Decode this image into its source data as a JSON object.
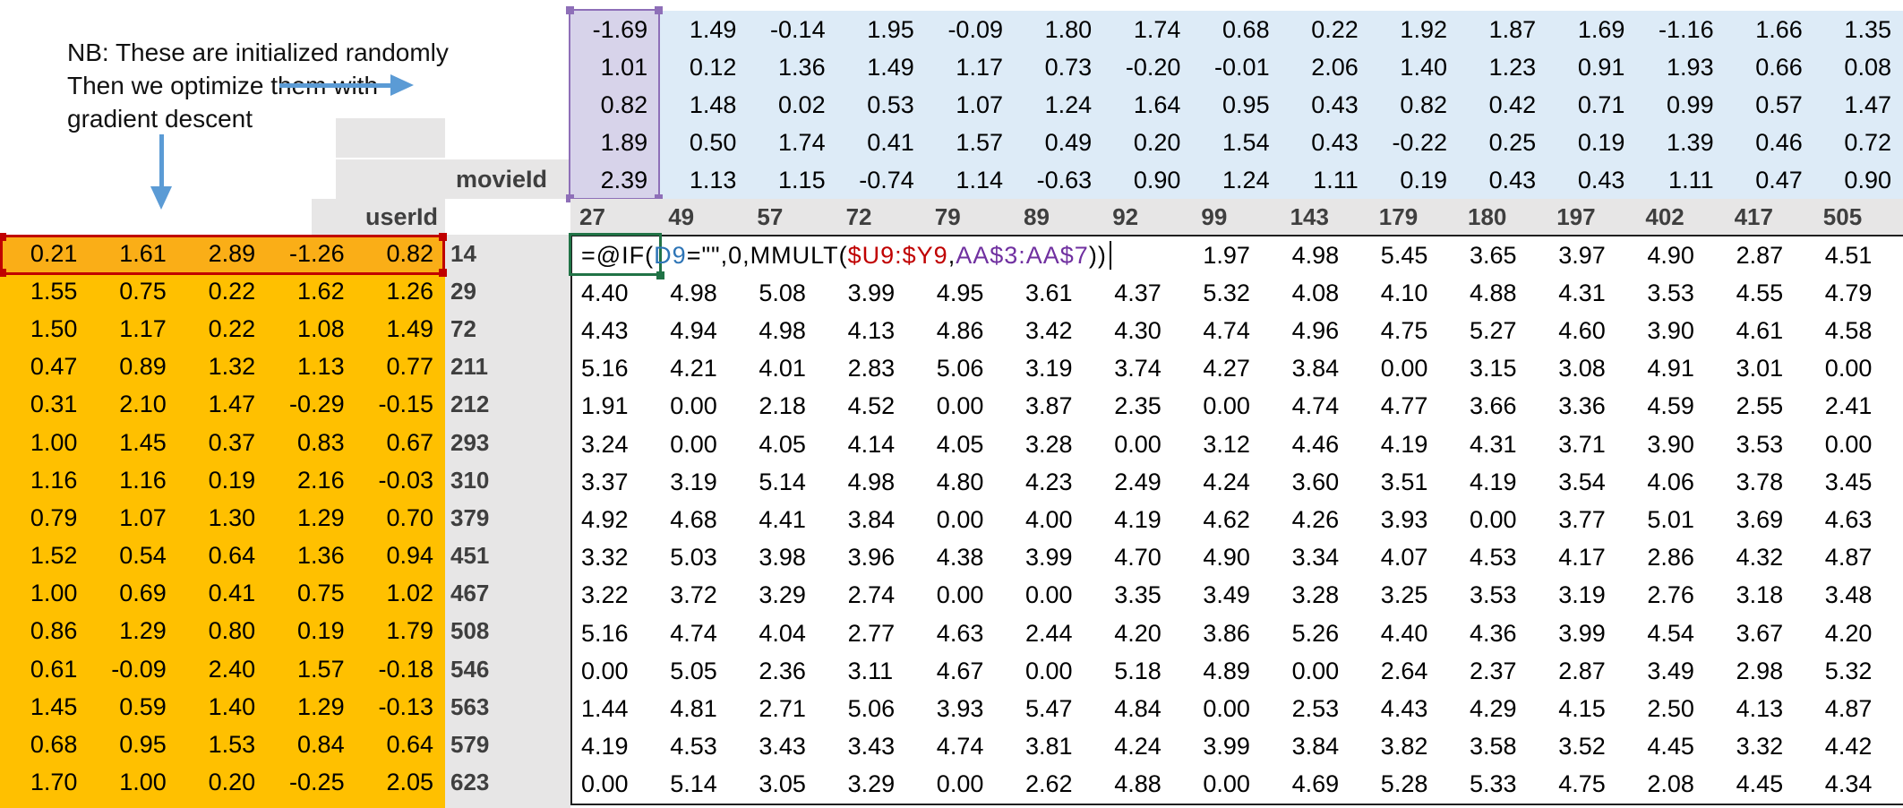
{
  "annotation": {
    "lines": [
      "NB: These are initialized randomly",
      "Then we optimize them with",
      "gradient descent"
    ]
  },
  "labels": {
    "movie_id": "movieId",
    "user_id": "userId"
  },
  "movie_ids": [
    "27",
    "49",
    "57",
    "72",
    "79",
    "89",
    "92",
    "99",
    "143",
    "179",
    "180",
    "197",
    "402",
    "417",
    "505"
  ],
  "user_ids": [
    "14",
    "29",
    "72",
    "211",
    "212",
    "293",
    "310",
    "379",
    "451",
    "467",
    "508",
    "546",
    "563",
    "579",
    "623"
  ],
  "movie_factors": {
    "rows": [
      [
        "-1.69",
        "1.49",
        "-0.14",
        "1.95",
        "-0.09",
        "1.80",
        "1.74",
        "0.68",
        "0.22",
        "1.92",
        "1.87",
        "1.69",
        "-1.16",
        "1.66",
        "1.35"
      ],
      [
        "1.01",
        "0.12",
        "1.36",
        "1.49",
        "1.17",
        "0.73",
        "-0.20",
        "-0.01",
        "2.06",
        "1.40",
        "1.23",
        "0.91",
        "1.93",
        "0.66",
        "0.08"
      ],
      [
        "0.82",
        "1.48",
        "0.02",
        "0.53",
        "1.07",
        "1.24",
        "1.64",
        "0.95",
        "0.43",
        "0.82",
        "0.42",
        "0.71",
        "0.99",
        "0.57",
        "1.47"
      ],
      [
        "1.89",
        "0.50",
        "1.74",
        "0.41",
        "1.57",
        "0.49",
        "0.20",
        "1.54",
        "0.43",
        "-0.22",
        "0.25",
        "0.19",
        "1.39",
        "0.46",
        "0.72"
      ],
      [
        "2.39",
        "1.13",
        "1.15",
        "-0.74",
        "1.14",
        "-0.63",
        "0.90",
        "1.24",
        "1.11",
        "0.19",
        "0.43",
        "0.43",
        "1.11",
        "0.47",
        "0.90"
      ]
    ]
  },
  "user_factors": {
    "rows": [
      [
        "0.21",
        "1.61",
        "2.89",
        "-1.26",
        "0.82"
      ],
      [
        "1.55",
        "0.75",
        "0.22",
        "1.62",
        "1.26"
      ],
      [
        "1.50",
        "1.17",
        "0.22",
        "1.08",
        "1.49"
      ],
      [
        "0.47",
        "0.89",
        "1.32",
        "1.13",
        "0.77"
      ],
      [
        "0.31",
        "2.10",
        "1.47",
        "-0.29",
        "-0.15"
      ],
      [
        "1.00",
        "1.45",
        "0.37",
        "0.83",
        "0.67"
      ],
      [
        "1.16",
        "1.16",
        "0.19",
        "2.16",
        "-0.03"
      ],
      [
        "0.79",
        "1.07",
        "1.30",
        "1.29",
        "0.70"
      ],
      [
        "1.52",
        "0.54",
        "0.64",
        "1.36",
        "0.94"
      ],
      [
        "1.00",
        "0.69",
        "0.41",
        "0.75",
        "1.02"
      ],
      [
        "0.86",
        "1.29",
        "0.80",
        "0.19",
        "1.79"
      ],
      [
        "0.61",
        "-0.09",
        "2.40",
        "1.57",
        "-0.18"
      ],
      [
        "1.45",
        "0.59",
        "1.40",
        "1.29",
        "-0.13"
      ],
      [
        "0.68",
        "0.95",
        "1.53",
        "0.84",
        "0.64"
      ],
      [
        "1.70",
        "1.00",
        "0.20",
        "-0.25",
        "2.05"
      ]
    ]
  },
  "formula": {
    "segments": [
      {
        "text": "=@IF(",
        "color": "#000000"
      },
      {
        "text": "D9",
        "color": "#2E75B6"
      },
      {
        "text": "=\"\",0,MMULT(",
        "color": "#000000"
      },
      {
        "text": "$U9:$Y9",
        "color": "#C00000"
      },
      {
        "text": ",",
        "color": "#000000"
      },
      {
        "text": "AA$3:AA$7",
        "color": "#7030A0"
      },
      {
        "text": "))",
        "color": "#000000"
      }
    ]
  },
  "predictions": {
    "first_row_values": [
      "1.97",
      "4.98",
      "5.45",
      "3.65",
      "3.97",
      "4.90",
      "2.87",
      "4.51"
    ],
    "rows": [
      [
        "4.40",
        "4.98",
        "5.08",
        "3.99",
        "4.95",
        "3.61",
        "4.37",
        "5.32",
        "4.08",
        "4.10",
        "4.88",
        "4.31",
        "3.53",
        "4.55",
        "4.79"
      ],
      [
        "4.43",
        "4.94",
        "4.98",
        "4.13",
        "4.86",
        "3.42",
        "4.30",
        "4.74",
        "4.96",
        "4.75",
        "5.27",
        "4.60",
        "3.90",
        "4.61",
        "4.58"
      ],
      [
        "5.16",
        "4.21",
        "4.01",
        "2.83",
        "5.06",
        "3.19",
        "3.74",
        "4.27",
        "3.84",
        "0.00",
        "3.15",
        "3.08",
        "4.91",
        "3.01",
        "0.00"
      ],
      [
        "1.91",
        "0.00",
        "2.18",
        "4.52",
        "0.00",
        "3.87",
        "2.35",
        "0.00",
        "4.74",
        "4.77",
        "3.66",
        "3.36",
        "4.59",
        "2.55",
        "2.41"
      ],
      [
        "3.24",
        "0.00",
        "4.05",
        "4.14",
        "4.05",
        "3.28",
        "0.00",
        "3.12",
        "4.46",
        "4.19",
        "4.31",
        "3.71",
        "3.90",
        "3.53",
        "0.00"
      ],
      [
        "3.37",
        "3.19",
        "5.14",
        "4.98",
        "4.80",
        "4.23",
        "2.49",
        "4.24",
        "3.60",
        "3.51",
        "4.19",
        "3.54",
        "4.06",
        "3.78",
        "3.45"
      ],
      [
        "4.92",
        "4.68",
        "4.41",
        "3.84",
        "0.00",
        "4.00",
        "4.19",
        "4.62",
        "4.26",
        "3.93",
        "0.00",
        "3.77",
        "5.01",
        "3.69",
        "4.63"
      ],
      [
        "3.32",
        "5.03",
        "3.98",
        "3.96",
        "4.38",
        "3.99",
        "4.70",
        "4.90",
        "3.34",
        "4.07",
        "4.53",
        "4.17",
        "2.86",
        "4.32",
        "4.87"
      ],
      [
        "3.22",
        "3.72",
        "3.29",
        "2.74",
        "0.00",
        "0.00",
        "3.35",
        "3.49",
        "3.28",
        "3.25",
        "3.53",
        "3.19",
        "2.76",
        "3.18",
        "3.48"
      ],
      [
        "5.16",
        "4.74",
        "4.04",
        "2.77",
        "4.63",
        "2.44",
        "4.20",
        "3.86",
        "5.26",
        "4.40",
        "4.36",
        "3.99",
        "4.54",
        "3.67",
        "4.20"
      ],
      [
        "0.00",
        "5.05",
        "2.36",
        "3.11",
        "4.67",
        "0.00",
        "5.18",
        "4.89",
        "0.00",
        "2.64",
        "2.37",
        "2.87",
        "3.49",
        "2.98",
        "5.32"
      ],
      [
        "1.44",
        "4.81",
        "2.71",
        "5.06",
        "3.93",
        "5.47",
        "4.84",
        "0.00",
        "2.53",
        "4.43",
        "4.29",
        "4.15",
        "2.50",
        "4.13",
        "4.87"
      ],
      [
        "4.19",
        "4.53",
        "3.43",
        "3.43",
        "4.74",
        "3.81",
        "4.24",
        "3.99",
        "3.84",
        "3.82",
        "3.58",
        "3.52",
        "4.45",
        "3.32",
        "4.42"
      ],
      [
        "0.00",
        "5.14",
        "3.05",
        "3.29",
        "0.00",
        "2.62",
        "4.88",
        "0.00",
        "4.69",
        "5.28",
        "5.33",
        "4.75",
        "2.08",
        "4.45",
        "4.34"
      ]
    ]
  },
  "colors": {
    "arrow_blue": "#5B9BD5",
    "movie_factor_fill": "#DDEBF7",
    "movie_factor_selected_fill": "#D7D3EA",
    "user_factor_fill": "#FFC000",
    "user_factor_selected_fill": "#FAAE17",
    "header_gray": "#E7E6E6",
    "header_text": "#3F3F3F",
    "selection_purple": "#8E6FB8",
    "selection_red": "#C00000",
    "selection_green": "#217346",
    "grid_border": "#1F1F1F"
  }
}
